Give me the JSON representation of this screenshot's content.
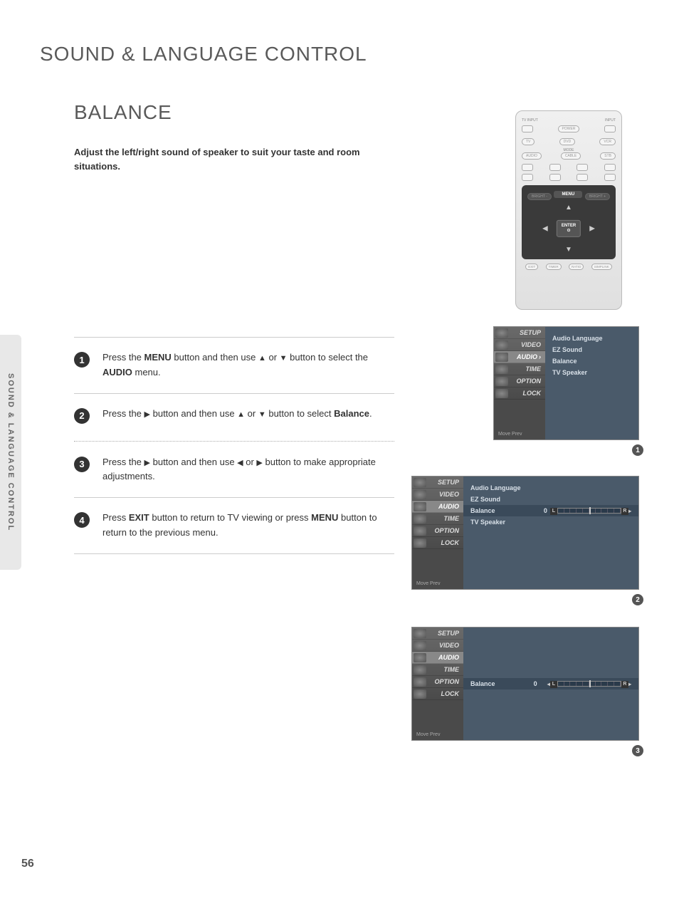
{
  "page": {
    "main_title": "SOUND & LANGUAGE CONTROL",
    "section_title": "BALANCE",
    "intro": "Adjust the left/right sound of speaker to suit your taste and room situations.",
    "side_tab": "SOUND & LANGUAGE CONTROL",
    "page_number": "56"
  },
  "steps": [
    {
      "num": "1",
      "html": "Press the <b>MENU</b> button and then use <span class='arrow'>▲</span> or <span class='arrow'>▼</span> button to select the <b>AUDIO</b> menu."
    },
    {
      "num": "2",
      "html": "Press the <span class='arrow'>▶</span> button and then use <span class='arrow'>▲</span> or <span class='arrow'>▼</span> button to select <b>Balance</b>."
    },
    {
      "num": "3",
      "html": "Press the <span class='arrow'>▶</span> button and then use <span class='arrow'>◀</span> or <span class='arrow'>▶</span> button to make appropriate adjustments."
    },
    {
      "num": "4",
      "html": "Press <b>EXIT</b> button to return to TV viewing or press <b>MENU</b> button to return to the previous menu."
    }
  ],
  "remote": {
    "tv_input": "TV INPUT",
    "input": "INPUT",
    "power": "POWER",
    "row2": [
      "TV",
      "DVD",
      "VCR"
    ],
    "mode": "MODE",
    "row3": [
      "AUDIO",
      "CABLE",
      "STB"
    ],
    "bright_minus": "BRIGHT -",
    "bright_plus": "BRIGHT +",
    "menu": "MENU",
    "enter": "ENTER",
    "enter_icon": "⊙",
    "bottom": [
      "EXIT",
      "TIMER",
      "RATIO",
      "SIMPLINK"
    ]
  },
  "osd_menu_items": [
    "SETUP",
    "VIDEO",
    "AUDIO",
    "TIME",
    "OPTION",
    "LOCK"
  ],
  "osd_footer": "Move    Prev",
  "osd_panel_items": [
    "Audio Language",
    "EZ Sound",
    "Balance",
    "TV Speaker"
  ],
  "balance_value": "0",
  "balance_left": "L",
  "balance_right": "R",
  "colors": {
    "page_bg": "#ffffff",
    "title_color": "#5a5a5a",
    "text_color": "#333333",
    "step_circle": "#333333",
    "side_tab_bg": "#e8e8e8",
    "osd_menu_bg": "#5a5a5a",
    "osd_panel_bg": "#4a5a6a",
    "osd_sel_bg": "#888888",
    "remote_bg": "#e8e8e8",
    "remote_dark": "#3a3a3a"
  },
  "fonts": {
    "main_title_size": 28,
    "section_title_size": 28,
    "body_size": 13,
    "osd_size": 9
  }
}
